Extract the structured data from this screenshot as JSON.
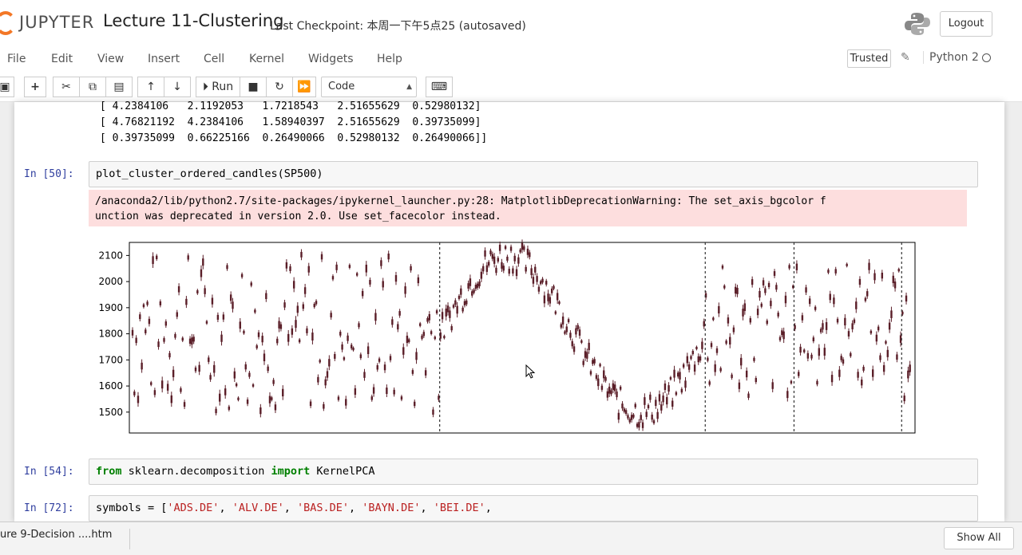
{
  "header": {
    "logo_text": "JUPYTER",
    "notebook_title": "Lecture 11-Clustering",
    "checkpoint": "Last Checkpoint: 本周一下午5点25  (autosaved)",
    "logout_label": "Logout"
  },
  "menu": {
    "items": [
      "File",
      "Edit",
      "View",
      "Insert",
      "Cell",
      "Kernel",
      "Widgets",
      "Help"
    ],
    "trusted_label": "Trusted",
    "kernel_name": "Python 2"
  },
  "toolbar": {
    "run_label": "Run",
    "cell_type": "Code"
  },
  "cells": {
    "array_output": [
      "[ 4.2384106   2.1192053   1.7218543   2.51655629  0.52980132]",
      "[ 4.76821192  4.2384106   1.58940397  2.51655629  0.39735099]",
      "[ 0.39735099  0.66225166  0.26490066  0.52980132  0.26490066]]"
    ],
    "cell50": {
      "prompt": "In [50]:",
      "code": "plot_cluster_ordered_candles(SP500)",
      "warning_line1": "/anaconda2/lib/python2.7/site-packages/ipykernel_launcher.py:28: MatplotlibDeprecationWarning: The set_axis_bgcolor f",
      "warning_line2": "unction was deprecated in version 2.0. Use set_facecolor instead."
    },
    "cell54": {
      "prompt": "In [54]:",
      "code_kw1": "from",
      "code_mid": " sklearn.decomposition ",
      "code_kw2": "import",
      "code_end": " KernelPCA"
    },
    "cell72": {
      "prompt": "In [72]:",
      "code_start": "symbols = [",
      "strings": [
        "'ADS.DE'",
        "'ALV.DE'",
        "'BAS.DE'",
        "'BAYN.DE'",
        "'BEI.DE'"
      ]
    }
  },
  "chart_data": {
    "type": "candlestick",
    "y_ticks": [
      1500,
      1600,
      1700,
      1800,
      1900,
      2000,
      2100
    ],
    "ylim": [
      1420,
      2150
    ],
    "cluster_boundaries_fraction": [
      0.395,
      0.733,
      0.846,
      0.983
    ],
    "candle_color": "#5a1e28"
  },
  "bottom": {
    "download_file": "ure 9-Decision ....htm",
    "show_all_label": "Show All"
  },
  "colors": {
    "accent": "#f37726",
    "prompt": "#303f9f",
    "warning_bg": "#fddede"
  }
}
